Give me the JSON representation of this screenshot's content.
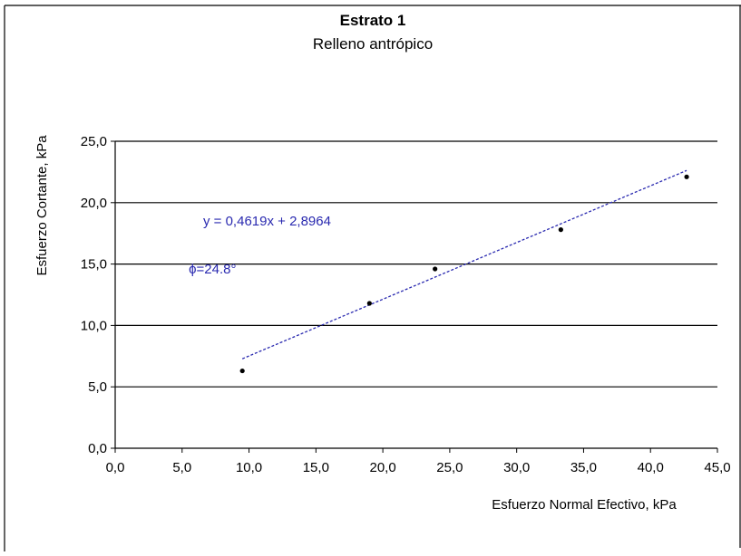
{
  "chart_data": {
    "type": "scatter",
    "title": "Estrato 1",
    "subtitle": "Relleno antrópico",
    "xlabel": "Esfuerzo Normal Efectivo,  kPa",
    "ylabel": "Esfuerzo Cortante, kPa",
    "xlim": [
      0,
      45
    ],
    "ylim": [
      0,
      25
    ],
    "x_ticks": [
      0,
      5,
      10,
      15,
      20,
      25,
      30,
      35,
      40,
      45
    ],
    "y_ticks": [
      0,
      5,
      10,
      15,
      20,
      25
    ],
    "x_tick_labels": [
      "0,0",
      "5,0",
      "10,0",
      "15,0",
      "20,0",
      "25,0",
      "30,0",
      "35,0",
      "40,0",
      "45,0"
    ],
    "y_tick_labels": [
      "0,0",
      "5,0",
      "10,0",
      "15,0",
      "20,0",
      "25,0"
    ],
    "grid": "horizontal",
    "points": [
      {
        "x": 9.5,
        "y": 6.3
      },
      {
        "x": 19.0,
        "y": 11.8
      },
      {
        "x": 23.9,
        "y": 14.6
      },
      {
        "x": 33.3,
        "y": 17.8
      },
      {
        "x": 42.7,
        "y": 22.1
      }
    ],
    "trendline": {
      "slope": 0.4619,
      "intercept": 2.8964,
      "x_range": [
        9.5,
        42.7
      ],
      "equation": "y = 0,4619x + 2,8964",
      "color": "#2a2ab0"
    },
    "annotations": [
      {
        "text": "ϕ=24.8°",
        "x": 5.5,
        "y": 14.6,
        "color": "#2a2ab0"
      }
    ]
  }
}
